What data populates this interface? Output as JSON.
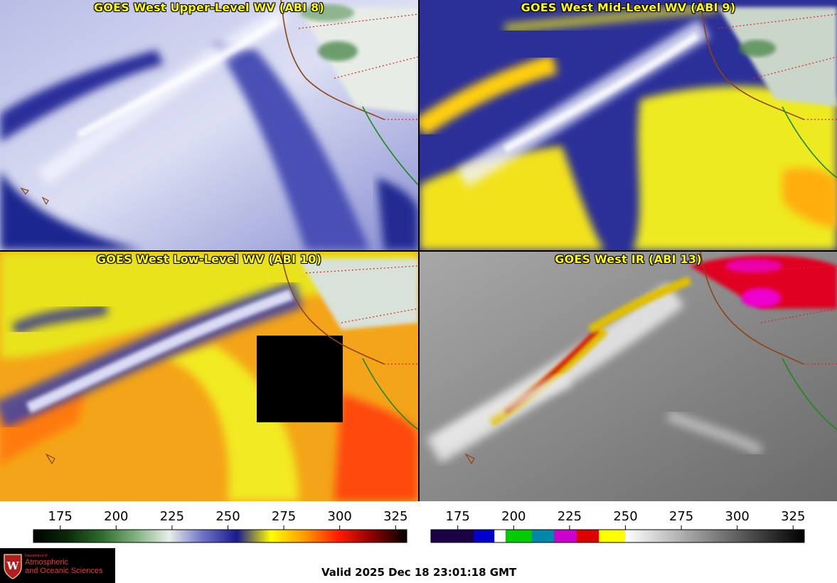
{
  "panels": [
    {
      "id": "upper",
      "title": "GOES West Upper-Level WV (ABI 8)"
    },
    {
      "id": "mid",
      "title": "GOES West Mid-Level WV (ABI 9)"
    },
    {
      "id": "low",
      "title": "GOES West Low-Level WV (ABI 10)"
    },
    {
      "id": "ir",
      "title": "GOES West IR (ABI 13)"
    }
  ],
  "colorbars": {
    "wv": {
      "ticks": [
        "175",
        "200",
        "225",
        "250",
        "275",
        "300",
        "325"
      ],
      "min": 163,
      "max": 330,
      "stops": [
        "#000000",
        "#0a2a0a",
        "#2d6b2d",
        "#7fb07f",
        "#e8eee8",
        "#6d72c6",
        "#1a1a8e",
        "#ffff00",
        "#ff9900",
        "#ff1a00",
        "#8a0000",
        "#000000"
      ]
    },
    "ir": {
      "ticks": [
        "175",
        "200",
        "225",
        "250",
        "275",
        "300",
        "325"
      ],
      "min": 163,
      "max": 330,
      "segments": [
        "#1a0044",
        "#0000cc",
        "#ffffff",
        "#00cc00",
        "#0088aa",
        "#cc00cc",
        "#dd0000",
        "#ffff00",
        "#ffffff",
        "#000000"
      ]
    }
  },
  "footer": {
    "valid_text": "Valid 2025 Dec 18 23:01:18 GMT",
    "logo": {
      "small": "Department of",
      "line1": "Atmospheric",
      "line2": "and Oceanic Sciences"
    }
  }
}
